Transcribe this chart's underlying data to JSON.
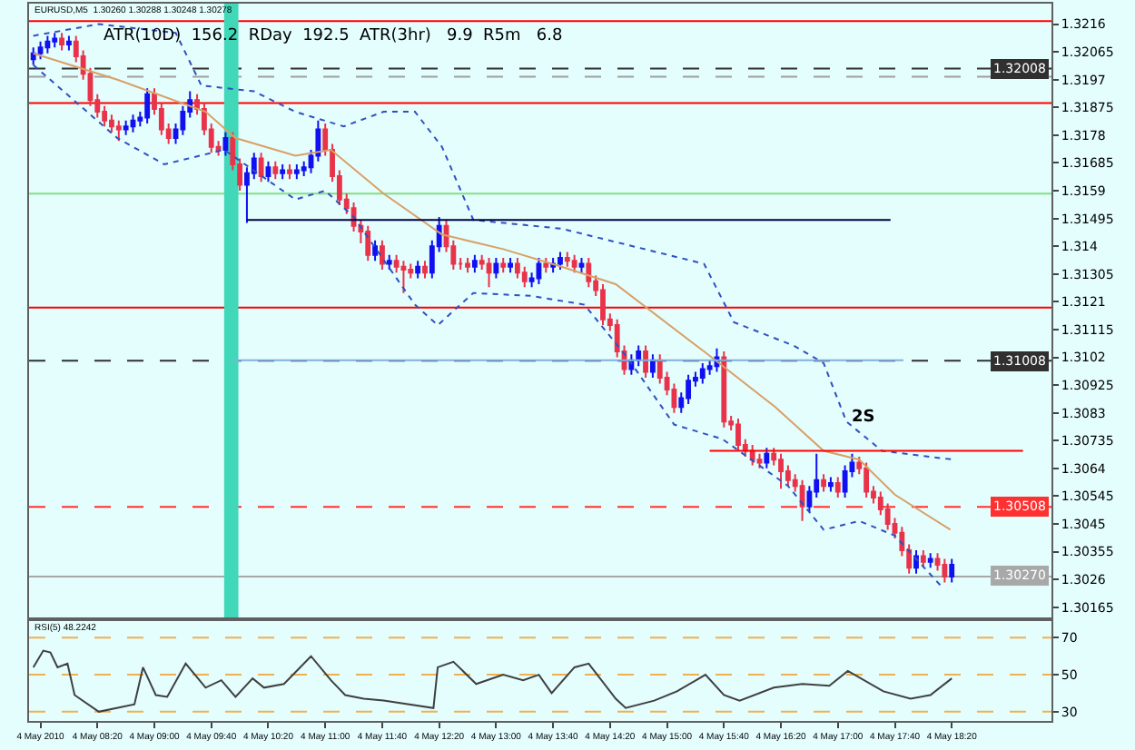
{
  "chart_data": [
    {
      "type": "candlestick",
      "title": "EURUSD,M5  1.30260 1.30288 1.30248 1.30278",
      "annotations": [
        "ATR(10D)  156.2  RDay  192.5  ATR(3hr)   9.9  R5m   6.8",
        {
          "text": "2S",
          "x": "2010-05-04T17:18",
          "y": 1.3077
        }
      ],
      "x": [
        "2010-05-04T07:35",
        "2010-05-04T07:40",
        "2010-05-04T07:45",
        "2010-05-04T07:50",
        "2010-05-04T07:55",
        "2010-05-04T08:00",
        "2010-05-04T08:05",
        "2010-05-04T08:10",
        "2010-05-04T08:15",
        "2010-05-04T08:20",
        "2010-05-04T08:25",
        "2010-05-04T08:30",
        "2010-05-04T08:35",
        "2010-05-04T08:40",
        "2010-05-04T08:45",
        "2010-05-04T08:50",
        "2010-05-04T08:55",
        "2010-05-04T09:00",
        "2010-05-04T09:05",
        "2010-05-04T09:10",
        "2010-05-04T09:15",
        "2010-05-04T09:20",
        "2010-05-04T09:25",
        "2010-05-04T09:30",
        "2010-05-04T09:35",
        "2010-05-04T09:40",
        "2010-05-04T09:45",
        "2010-05-04T09:50",
        "2010-05-04T09:55",
        "2010-05-04T10:00",
        "2010-05-04T10:05",
        "2010-05-04T10:10",
        "2010-05-04T10:15",
        "2010-05-04T10:20",
        "2010-05-04T10:25",
        "2010-05-04T10:30",
        "2010-05-04T10:35",
        "2010-05-04T10:40",
        "2010-05-04T10:45",
        "2010-05-04T10:50",
        "2010-05-04T10:55",
        "2010-05-04T11:00",
        "2010-05-04T11:05",
        "2010-05-04T11:10",
        "2010-05-04T11:15",
        "2010-05-04T11:20",
        "2010-05-04T11:25",
        "2010-05-04T11:30",
        "2010-05-04T11:35",
        "2010-05-04T11:40",
        "2010-05-04T11:45",
        "2010-05-04T11:50",
        "2010-05-04T11:55",
        "2010-05-04T12:00",
        "2010-05-04T12:05",
        "2010-05-04T12:10",
        "2010-05-04T12:15",
        "2010-05-04T12:20",
        "2010-05-04T12:25",
        "2010-05-04T12:30",
        "2010-05-04T12:35",
        "2010-05-04T12:40",
        "2010-05-04T12:45",
        "2010-05-04T12:50",
        "2010-05-04T12:55",
        "2010-05-04T13:00",
        "2010-05-04T13:05",
        "2010-05-04T13:10",
        "2010-05-04T13:15",
        "2010-05-04T13:20",
        "2010-05-04T13:25",
        "2010-05-04T13:30",
        "2010-05-04T13:35",
        "2010-05-04T13:40",
        "2010-05-04T13:45",
        "2010-05-04T13:50",
        "2010-05-04T13:55",
        "2010-05-04T14:00",
        "2010-05-04T14:05",
        "2010-05-04T14:10",
        "2010-05-04T14:15",
        "2010-05-04T14:20",
        "2010-05-04T14:25",
        "2010-05-04T14:30",
        "2010-05-04T14:35",
        "2010-05-04T14:40",
        "2010-05-04T14:45",
        "2010-05-04T14:50",
        "2010-05-04T14:55",
        "2010-05-04T15:00",
        "2010-05-04T15:05",
        "2010-05-04T15:10",
        "2010-05-04T15:15",
        "2010-05-04T15:20",
        "2010-05-04T15:25",
        "2010-05-04T15:30",
        "2010-05-04T15:35",
        "2010-05-04T15:40",
        "2010-05-04T15:45",
        "2010-05-04T15:50",
        "2010-05-04T15:55",
        "2010-05-04T16:00",
        "2010-05-04T16:05",
        "2010-05-04T16:10",
        "2010-05-04T16:15",
        "2010-05-04T16:20",
        "2010-05-04T16:25",
        "2010-05-04T16:30",
        "2010-05-04T16:35",
        "2010-05-04T16:40",
        "2010-05-04T16:45",
        "2010-05-04T16:50",
        "2010-05-04T16:55",
        "2010-05-04T17:00",
        "2010-05-04T17:05",
        "2010-05-04T17:10",
        "2010-05-04T17:15",
        "2010-05-04T17:20",
        "2010-05-04T17:25",
        "2010-05-04T17:30",
        "2010-05-04T17:35",
        "2010-05-04T17:40",
        "2010-05-04T17:45",
        "2010-05-04T17:50",
        "2010-05-04T17:55",
        "2010-05-04T18:00",
        "2010-05-04T18:05",
        "2010-05-04T18:10",
        "2010-05-04T18:15",
        "2010-05-04T18:20"
      ],
      "ohlc": [
        [
          1.3204,
          1.3208,
          1.3202,
          1.3206
        ],
        [
          1.3206,
          1.321,
          1.3204,
          1.3208
        ],
        [
          1.3208,
          1.3212,
          1.3206,
          1.321
        ],
        [
          1.321,
          1.3213,
          1.3208,
          1.3211
        ],
        [
          1.3211,
          1.3213,
          1.3207,
          1.3209
        ],
        [
          1.3209,
          1.3212,
          1.3207,
          1.321
        ],
        [
          1.321,
          1.3212,
          1.3203,
          1.3205
        ],
        [
          1.3205,
          1.3207,
          1.3197,
          1.3199
        ],
        [
          1.3199,
          1.3201,
          1.3188,
          1.319
        ],
        [
          1.319,
          1.3192,
          1.3184,
          1.3186
        ],
        [
          1.3186,
          1.3188,
          1.3181,
          1.3183
        ],
        [
          1.3183,
          1.3185,
          1.3179,
          1.3181
        ],
        [
          1.3181,
          1.3183,
          1.3176,
          1.318
        ],
        [
          1.318,
          1.3183,
          1.3178,
          1.3181
        ],
        [
          1.3181,
          1.3185,
          1.3179,
          1.3183
        ],
        [
          1.3183,
          1.3186,
          1.3181,
          1.3184
        ],
        [
          1.3184,
          1.3194,
          1.3182,
          1.3192
        ],
        [
          1.3192,
          1.3194,
          1.3185,
          1.3187
        ],
        [
          1.3187,
          1.3189,
          1.3178,
          1.318
        ],
        [
          1.318,
          1.3182,
          1.3175,
          1.3177
        ],
        [
          1.3177,
          1.3182,
          1.3175,
          1.318
        ],
        [
          1.318,
          1.3188,
          1.3178,
          1.3186
        ],
        [
          1.3186,
          1.3193,
          1.3184,
          1.319
        ],
        [
          1.319,
          1.3192,
          1.3185,
          1.3187
        ],
        [
          1.3187,
          1.3189,
          1.3178,
          1.318
        ],
        [
          1.318,
          1.3182,
          1.3172,
          1.3174
        ],
        [
          1.3174,
          1.3176,
          1.3171,
          1.3173
        ],
        [
          1.3173,
          1.3179,
          1.3171,
          1.3177
        ],
        [
          1.3177,
          1.3179,
          1.3166,
          1.3168
        ],
        [
          1.3168,
          1.317,
          1.3159,
          1.3161
        ],
        [
          1.3161,
          1.3167,
          1.3148,
          1.3165
        ],
        [
          1.3165,
          1.3172,
          1.3163,
          1.317
        ],
        [
          1.317,
          1.3172,
          1.3162,
          1.3164
        ],
        [
          1.3164,
          1.3169,
          1.3162,
          1.3167
        ],
        [
          1.3167,
          1.3169,
          1.3163,
          1.3165
        ],
        [
          1.3165,
          1.3168,
          1.3163,
          1.3166
        ],
        [
          1.3166,
          1.3168,
          1.3163,
          1.3165
        ],
        [
          1.3165,
          1.3168,
          1.3163,
          1.3166
        ],
        [
          1.3166,
          1.3169,
          1.3164,
          1.3167
        ],
        [
          1.3167,
          1.3173,
          1.3165,
          1.3171
        ],
        [
          1.3171,
          1.3183,
          1.3169,
          1.318
        ],
        [
          1.318,
          1.3182,
          1.3171,
          1.3173
        ],
        [
          1.3173,
          1.3175,
          1.3162,
          1.3164
        ],
        [
          1.3164,
          1.3166,
          1.3154,
          1.3156
        ],
        [
          1.3156,
          1.3158,
          1.3151,
          1.3153
        ],
        [
          1.3153,
          1.3155,
          1.3145,
          1.3147
        ],
        [
          1.3147,
          1.3149,
          1.3141,
          1.3145
        ],
        [
          1.3145,
          1.3147,
          1.3135,
          1.3137
        ],
        [
          1.3137,
          1.3142,
          1.3135,
          1.314
        ],
        [
          1.314,
          1.3142,
          1.3132,
          1.3134
        ],
        [
          1.3134,
          1.3137,
          1.3132,
          1.3135
        ],
        [
          1.3135,
          1.3137,
          1.3131,
          1.3133
        ],
        [
          1.3133,
          1.3135,
          1.3124,
          1.3132
        ],
        [
          1.3132,
          1.3134,
          1.3129,
          1.3131
        ],
        [
          1.3131,
          1.3135,
          1.3129,
          1.3133
        ],
        [
          1.3133,
          1.3135,
          1.3129,
          1.3131
        ],
        [
          1.3131,
          1.3142,
          1.3129,
          1.314
        ],
        [
          1.314,
          1.315,
          1.3138,
          1.3147
        ],
        [
          1.3147,
          1.3149,
          1.3138,
          1.314
        ],
        [
          1.314,
          1.3142,
          1.3132,
          1.3134
        ],
        [
          1.3134,
          1.3136,
          1.3132,
          1.3134
        ],
        [
          1.3134,
          1.3136,
          1.3131,
          1.3133
        ],
        [
          1.3133,
          1.3137,
          1.3131,
          1.3135
        ],
        [
          1.3135,
          1.3137,
          1.3132,
          1.3134
        ],
        [
          1.3134,
          1.3136,
          1.3126,
          1.3131
        ],
        [
          1.3131,
          1.3136,
          1.3129,
          1.3134
        ],
        [
          1.3134,
          1.3136,
          1.3131,
          1.3133
        ],
        [
          1.3133,
          1.3136,
          1.3131,
          1.3134
        ],
        [
          1.3134,
          1.3136,
          1.3129,
          1.3131
        ],
        [
          1.3131,
          1.3133,
          1.3126,
          1.3128
        ],
        [
          1.3128,
          1.3131,
          1.3126,
          1.3129
        ],
        [
          1.3129,
          1.3136,
          1.3127,
          1.3134
        ],
        [
          1.3134,
          1.3136,
          1.3131,
          1.3133
        ],
        [
          1.3133,
          1.3136,
          1.3131,
          1.3134
        ],
        [
          1.3134,
          1.3138,
          1.3132,
          1.3136
        ],
        [
          1.3136,
          1.3138,
          1.3133,
          1.3135
        ],
        [
          1.3135,
          1.3137,
          1.3131,
          1.3133
        ],
        [
          1.3133,
          1.3136,
          1.3131,
          1.3134
        ],
        [
          1.3134,
          1.3136,
          1.3126,
          1.3128
        ],
        [
          1.3128,
          1.313,
          1.3123,
          1.3125
        ],
        [
          1.3125,
          1.3127,
          1.3113,
          1.3115
        ],
        [
          1.3115,
          1.3117,
          1.3111,
          1.3113
        ],
        [
          1.3113,
          1.3115,
          1.3102,
          1.3104
        ],
        [
          1.3104,
          1.3106,
          1.3096,
          1.3098
        ],
        [
          1.3098,
          1.3103,
          1.3096,
          1.3101
        ],
        [
          1.3101,
          1.3106,
          1.3099,
          1.3104
        ],
        [
          1.3104,
          1.3106,
          1.3095,
          1.3097
        ],
        [
          1.3097,
          1.3103,
          1.3095,
          1.3101
        ],
        [
          1.3101,
          1.3103,
          1.3093,
          1.3095
        ],
        [
          1.3095,
          1.3097,
          1.3089,
          1.3091
        ],
        [
          1.3091,
          1.3093,
          1.3083,
          1.3085
        ],
        [
          1.3085,
          1.309,
          1.3083,
          1.3088
        ],
        [
          1.3088,
          1.3096,
          1.3086,
          1.3094
        ],
        [
          1.3094,
          1.3097,
          1.3092,
          1.3095
        ],
        [
          1.3095,
          1.31,
          1.3093,
          1.3098
        ],
        [
          1.3098,
          1.3101,
          1.3096,
          1.3099
        ],
        [
          1.3099,
          1.3105,
          1.3097,
          1.3102
        ],
        [
          1.3102,
          1.3104,
          1.3078,
          1.308
        ],
        [
          1.308,
          1.3082,
          1.3077,
          1.3079
        ],
        [
          1.3079,
          1.3081,
          1.307,
          1.3072
        ],
        [
          1.3072,
          1.3074,
          1.3068,
          1.307
        ],
        [
          1.307,
          1.3072,
          1.3065,
          1.3067
        ],
        [
          1.3067,
          1.3069,
          1.3064,
          1.3066
        ],
        [
          1.3066,
          1.3071,
          1.3064,
          1.3069
        ],
        [
          1.3069,
          1.3071,
          1.3065,
          1.3067
        ],
        [
          1.3067,
          1.3069,
          1.3057,
          1.3063
        ],
        [
          1.3063,
          1.3065,
          1.3058,
          1.306
        ],
        [
          1.306,
          1.3062,
          1.3056,
          1.3058
        ],
        [
          1.3058,
          1.306,
          1.3046,
          1.3051
        ],
        [
          1.3051,
          1.3058,
          1.3049,
          1.3056
        ],
        [
          1.3056,
          1.3069,
          1.3054,
          1.306
        ],
        [
          1.306,
          1.3062,
          1.3056,
          1.3058
        ],
        [
          1.3058,
          1.3061,
          1.3056,
          1.3059
        ],
        [
          1.3059,
          1.3061,
          1.3054,
          1.3056
        ],
        [
          1.3056,
          1.3065,
          1.3054,
          1.3063
        ],
        [
          1.3063,
          1.3069,
          1.3061,
          1.3066
        ],
        [
          1.3066,
          1.3068,
          1.3062,
          1.3064
        ],
        [
          1.3064,
          1.3066,
          1.3054,
          1.3056
        ],
        [
          1.3056,
          1.3058,
          1.3052,
          1.3054
        ],
        [
          1.3054,
          1.3056,
          1.3048,
          1.305
        ],
        [
          1.305,
          1.3052,
          1.3043,
          1.3045
        ],
        [
          1.3045,
          1.3047,
          1.304,
          1.3042
        ],
        [
          1.3042,
          1.3044,
          1.3034,
          1.3036
        ],
        [
          1.3036,
          1.3038,
          1.3028,
          1.303
        ],
        [
          1.303,
          1.3036,
          1.3028,
          1.3034
        ],
        [
          1.3034,
          1.3036,
          1.303,
          1.3032
        ],
        [
          1.3032,
          1.3035,
          1.303,
          1.3033
        ],
        [
          1.3033,
          1.3035,
          1.3029,
          1.3031
        ],
        [
          1.3031,
          1.3033,
          1.3025,
          1.3027
        ],
        [
          1.3027,
          1.3033,
          1.3025,
          1.3031
        ]
      ],
      "colors": [
        "#1010f0",
        "#1010f0",
        "#1010f0",
        "#1010f0",
        "#e8334a",
        "#1010f0",
        "#e8334a",
        "#e8334a",
        "#e8334a",
        "#e8334a",
        "#e8334a",
        "#e8334a",
        "#e8334a",
        "#1010f0",
        "#1010f0",
        "#1010f0",
        "#1010f0",
        "#e8334a",
        "#e8334a",
        "#e8334a",
        "#1010f0",
        "#1010f0",
        "#1010f0",
        "#e8334a",
        "#e8334a",
        "#e8334a",
        "#e8334a",
        "#1010f0",
        "#e8334a",
        "#e8334a",
        "#1010f0",
        "#1010f0",
        "#e8334a",
        "#1010f0",
        "#e8334a",
        "#1010f0",
        "#e8334a",
        "#1010f0",
        "#1010f0",
        "#1010f0",
        "#1010f0",
        "#e8334a",
        "#e8334a",
        "#e8334a",
        "#e8334a",
        "#e8334a",
        "#e8334a",
        "#e8334a",
        "#1010f0",
        "#e8334a",
        "#1010f0",
        "#e8334a",
        "#e8334a",
        "#e8334a",
        "#1010f0",
        "#e8334a",
        "#1010f0",
        "#1010f0",
        "#e8334a",
        "#e8334a",
        "#e8334a",
        "#e8334a",
        "#1010f0",
        "#e8334a",
        "#e8334a",
        "#1010f0",
        "#e8334a",
        "#1010f0",
        "#e8334a",
        "#e8334a",
        "#1010f0",
        "#1010f0",
        "#e8334a",
        "#1010f0",
        "#1010f0",
        "#e8334a",
        "#e8334a",
        "#1010f0",
        "#e8334a",
        "#e8334a",
        "#e8334a",
        "#e8334a",
        "#e8334a",
        "#e8334a",
        "#1010f0",
        "#1010f0",
        "#e8334a",
        "#1010f0",
        "#e8334a",
        "#e8334a",
        "#e8334a",
        "#1010f0",
        "#1010f0",
        "#1010f0",
        "#1010f0",
        "#1010f0",
        "#1010f0",
        "#e8334a",
        "#e8334a",
        "#e8334a",
        "#e8334a",
        "#e8334a",
        "#e8334a",
        "#1010f0",
        "#e8334a",
        "#e8334a",
        "#e8334a",
        "#e8334a",
        "#e8334a",
        "#1010f0",
        "#1010f0",
        "#e8334a",
        "#1010f0",
        "#e8334a",
        "#1010f0",
        "#1010f0",
        "#e8334a",
        "#e8334a",
        "#e8334a",
        "#e8334a",
        "#e8334a",
        "#e8334a",
        "#e8334a",
        "#e8334a",
        "#1010f0",
        "#e8334a",
        "#1010f0",
        "#e8334a",
        "#e8334a",
        "#1010f0"
      ],
      "series": [
        {
          "type": "line",
          "color": "#d9a066",
          "line_style": "solid",
          "x": [
            "2010-05-04T07:35",
            "2010-05-04T08:34",
            "2010-05-04T09:36",
            "2010-05-04T09:57",
            "2010-05-04T10:39",
            "2010-05-04T11:04",
            "2010-05-04T11:41",
            "2010-05-04T12:22",
            "2010-05-04T13:05",
            "2010-05-04T13:46",
            "2010-05-04T14:24",
            "2010-05-04T15:26",
            "2010-05-04T16:16",
            "2010-05-04T16:50",
            "2010-05-04T17:15",
            "2010-05-04T17:40",
            "2010-05-04T18:19"
          ],
          "values": [
            1.3206,
            1.3197,
            1.3186,
            1.3177,
            1.3171,
            1.3173,
            1.3158,
            1.3144,
            1.3139,
            1.3133,
            1.3127,
            1.3104,
            1.3085,
            1.307,
            1.3067,
            1.3055,
            1.3043
          ]
        },
        {
          "type": "line",
          "color": "#3050c0",
          "line_style": "dotted",
          "x": [
            "2010-05-04T07:35",
            "2010-05-04T08:21",
            "2010-05-04T09:15",
            "2010-05-04T09:33",
            "2010-05-04T10:10",
            "2010-05-04T10:39",
            "2010-05-04T11:13",
            "2010-05-04T11:41",
            "2010-05-04T12:03",
            "2010-05-04T12:22",
            "2010-05-04T12:44",
            "2010-05-04T13:46",
            "2010-05-04T14:36",
            "2010-05-04T15:26",
            "2010-05-04T15:47",
            "2010-05-04T16:29",
            "2010-05-04T16:50",
            "2010-05-04T17:06",
            "2010-05-04T17:31",
            "2010-05-04T18:21"
          ],
          "values": [
            1.3212,
            1.3216,
            1.3213,
            1.3195,
            1.3193,
            1.3186,
            1.3181,
            1.3186,
            1.3186,
            1.3174,
            1.3149,
            1.3146,
            1.314,
            1.3134,
            1.3114,
            1.3106,
            1.31,
            1.308,
            1.307,
            1.3067
          ]
        },
        {
          "type": "line",
          "color": "#3050c0",
          "line_style": "dotted",
          "x": [
            "2010-05-04T07:35",
            "2010-05-04T08:34",
            "2010-05-04T09:07",
            "2010-05-04T09:49",
            "2010-05-04T10:39",
            "2010-05-04T11:00",
            "2010-05-04T11:20",
            "2010-05-04T12:03",
            "2010-05-04T12:19",
            "2010-05-04T12:44",
            "2010-05-04T13:25",
            "2010-05-04T14:02",
            "2010-05-04T14:32",
            "2010-05-04T15:05",
            "2010-05-04T15:39",
            "2010-05-04T16:25",
            "2010-05-04T16:50",
            "2010-05-04T17:15",
            "2010-05-04T17:40",
            "2010-05-04T18:12"
          ],
          "values": [
            1.3202,
            1.3177,
            1.3168,
            1.3173,
            1.3156,
            1.3159,
            1.315,
            1.312,
            1.3113,
            1.3124,
            1.3123,
            1.312,
            1.3102,
            1.3079,
            1.3074,
            1.3058,
            1.3043,
            1.3046,
            1.3041,
            1.3024
          ]
        },
        {
          "type": "line",
          "color": "#000040",
          "line_style": "solid",
          "x": [
            "2010-05-04T10:05",
            "2010-05-04T17:37"
          ],
          "values": [
            1.3149,
            1.3149
          ]
        },
        {
          "type": "line",
          "color": "#80b0e0",
          "line_style": "solid",
          "x": [
            "2010-05-04T09:55",
            "2010-05-04T17:46"
          ],
          "values": [
            1.3101,
            1.3101
          ]
        },
        {
          "type": "line",
          "color": "#ff0000",
          "line_style": "solid",
          "x": [
            "2010-05-04T15:30",
            "2010-05-04T19:10"
          ],
          "values": [
            1.307,
            1.307
          ]
        }
      ],
      "ref_lines": [
        {
          "axis": "y",
          "value": 1.3217,
          "color": "#ff0000",
          "line_style": "solid"
        },
        {
          "axis": "y",
          "value": 1.32008,
          "label": "1.32008",
          "color": "#303030",
          "line_style": "dashed"
        },
        {
          "axis": "y",
          "value": 1.3198,
          "color": "#a0a0a0",
          "line_style": "dashed"
        },
        {
          "axis": "y",
          "value": 1.3189,
          "color": "#ff0000",
          "line_style": "solid"
        },
        {
          "axis": "y",
          "value": 1.3158,
          "color": "#80e080",
          "line_style": "solid"
        },
        {
          "axis": "y",
          "value": 1.3119,
          "color": "#ff0000",
          "line_style": "solid"
        },
        {
          "axis": "y",
          "value": 1.31008,
          "label": "1.31008",
          "color": "#303030",
          "line_style": "dashed"
        },
        {
          "axis": "y",
          "value": 1.30508,
          "label": "1.30508",
          "color": "#ff3030",
          "line_style": "dashed"
        },
        {
          "axis": "y",
          "value": 1.3027,
          "label": "1.30270",
          "color": "#a8a8a8",
          "line_style": "solid"
        }
      ],
      "bands": [
        {
          "axis": "x",
          "from": "2010-05-04T09:49",
          "to": "2010-05-04T09:59",
          "color": "#40d8b8"
        }
      ],
      "xlim": [
        "2010-05-04T07:32",
        "2010-05-04T19:30"
      ],
      "ylim": [
        1.3013,
        1.3223
      ],
      "yticks": [
        1.30165,
        1.3026,
        1.30355,
        1.3045,
        1.30545,
        1.3064,
        1.30735,
        1.3083,
        1.30925,
        1.3102,
        1.31115,
        1.3121,
        1.31305,
        1.314,
        1.31495,
        1.3159,
        1.31685,
        1.3178,
        1.31875,
        1.3197,
        1.32065,
        1.3216
      ],
      "tick_labels": "y",
      "grid": false
    },
    {
      "type": "line",
      "title": "RSI(5) 48.2242",
      "series": [
        {
          "color": "#404040",
          "x": [
            "2010-05-04T07:35",
            "2010-05-04T07:42",
            "2010-05-04T07:47",
            "2010-05-04T07:52",
            "2010-05-04T07:59",
            "2010-05-04T08:04",
            "2010-05-04T08:21",
            "2010-05-04T08:46",
            "2010-05-04T08:52",
            "2010-05-04T09:01",
            "2010-05-04T09:09",
            "2010-05-04T09:22",
            "2010-05-04T09:36",
            "2010-05-04T09:47",
            "2010-05-04T09:57",
            "2010-05-04T10:09",
            "2010-05-04T10:17",
            "2010-05-04T10:31",
            "2010-05-04T10:50",
            "2010-05-04T11:04",
            "2010-05-04T11:14",
            "2010-05-04T11:27",
            "2010-05-04T11:41",
            "2010-05-04T12:16",
            "2010-05-04T12:19",
            "2010-05-04T12:30",
            "2010-05-04T12:46",
            "2010-05-04T13:05",
            "2010-05-04T13:19",
            "2010-05-04T13:30",
            "2010-05-04T13:39",
            "2010-05-04T13:55",
            "2010-05-04T14:05",
            "2010-05-04T14:24",
            "2010-05-04T14:31",
            "2010-05-04T14:51",
            "2010-05-04T15:07",
            "2010-05-04T15:27",
            "2010-05-04T15:40",
            "2010-05-04T15:51",
            "2010-05-04T16:15",
            "2010-05-04T16:35",
            "2010-05-04T16:54",
            "2010-05-04T17:07",
            "2010-05-04T17:32",
            "2010-05-04T17:51",
            "2010-05-04T18:05",
            "2010-05-04T18:20"
          ],
          "values": [
            54,
            63,
            62,
            54,
            56,
            39,
            30,
            34,
            54,
            39,
            38,
            56,
            43,
            47,
            38,
            48,
            43,
            45,
            60,
            47,
            39,
            37,
            36,
            32,
            54,
            57,
            45,
            50,
            47,
            50,
            40,
            54,
            56,
            37,
            32,
            36,
            41,
            50,
            39,
            36,
            43,
            45,
            44,
            52,
            41,
            37,
            39,
            48
          ]
        }
      ],
      "ref_lines": [
        {
          "axis": "y",
          "value": 70,
          "color": "#f0b050",
          "line_style": "dashed"
        },
        {
          "axis": "y",
          "value": 50,
          "color": "#f0b050",
          "line_style": "dashed"
        },
        {
          "axis": "y",
          "value": 30,
          "color": "#f0b050",
          "line_style": "dashed"
        }
      ],
      "xlim": [
        "2010-05-04T07:32",
        "2010-05-04T19:30"
      ],
      "xticks": [
        {
          "value": "2010-05-04T07:40",
          "label": "4 May 2010"
        },
        {
          "value": "2010-05-04T08:20",
          "label": "4 May 08:20"
        },
        {
          "value": "2010-05-04T09:00",
          "label": "4 May 09:00"
        },
        {
          "value": "2010-05-04T09:40",
          "label": "4 May 09:40"
        },
        {
          "value": "2010-05-04T10:20",
          "label": "4 May 10:20"
        },
        {
          "value": "2010-05-04T11:00",
          "label": "4 May 11:00"
        },
        {
          "value": "2010-05-04T11:40",
          "label": "4 May 11:40"
        },
        {
          "value": "2010-05-04T12:20",
          "label": "4 May 12:20"
        },
        {
          "value": "2010-05-04T13:00",
          "label": "4 May 13:00"
        },
        {
          "value": "2010-05-04T13:40",
          "label": "4 May 13:40"
        },
        {
          "value": "2010-05-04T14:20",
          "label": "4 May 14:20"
        },
        {
          "value": "2010-05-04T15:00",
          "label": "4 May 15:00"
        },
        {
          "value": "2010-05-04T15:40",
          "label": "4 May 15:40"
        },
        {
          "value": "2010-05-04T16:20",
          "label": "4 May 16:20"
        },
        {
          "value": "2010-05-04T17:00",
          "label": "4 May 17:00"
        },
        {
          "value": "2010-05-04T17:40",
          "label": "4 May 17:40"
        },
        {
          "value": "2010-05-04T18:20",
          "label": "4 May 18:20"
        }
      ],
      "ylim": [
        25,
        79
      ],
      "yticks": [
        30,
        50,
        70
      ],
      "grid": false,
      "marker": "none"
    }
  ]
}
